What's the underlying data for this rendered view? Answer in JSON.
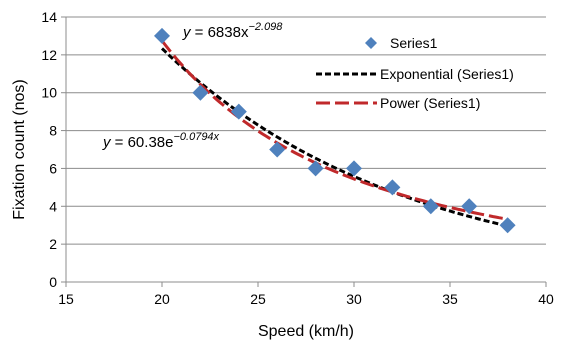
{
  "chart_data": {
    "type": "scatter",
    "xlabel": "Speed  (km/h)",
    "ylabel": "Fixation count (nos)",
    "xlim": [
      15,
      40
    ],
    "ylim": [
      0,
      14
    ],
    "x_ticks": [
      15,
      20,
      25,
      30,
      35,
      40
    ],
    "y_ticks": [
      0,
      2,
      4,
      6,
      8,
      10,
      12,
      14
    ],
    "grid": "horizontal",
    "legend_position": "top-right",
    "series": [
      {
        "name": "Series1",
        "marker": "diamond",
        "color": "#4f81bd",
        "x": [
          20,
          22,
          24,
          26,
          28,
          30,
          32,
          34,
          36,
          38
        ],
        "y": [
          13,
          10,
          9,
          7,
          6,
          6,
          5,
          4,
          4,
          3
        ]
      }
    ],
    "trendlines": [
      {
        "name": "Exponential (Series1)",
        "type": "exponential",
        "a": 60.38,
        "b": -0.0794,
        "color": "#000000",
        "equation": {
          "lead": "y",
          "mid": " = 60.38e",
          "exp": "−0.0794x"
        }
      },
      {
        "name": "Power (Series1)",
        "type": "power",
        "a": 6838,
        "b": -2.098,
        "color": "#c0292b",
        "equation": {
          "lead": "y",
          "mid": " = 6838x",
          "exp": "−2.098"
        }
      }
    ],
    "x_range_fit": [
      20,
      38
    ]
  }
}
